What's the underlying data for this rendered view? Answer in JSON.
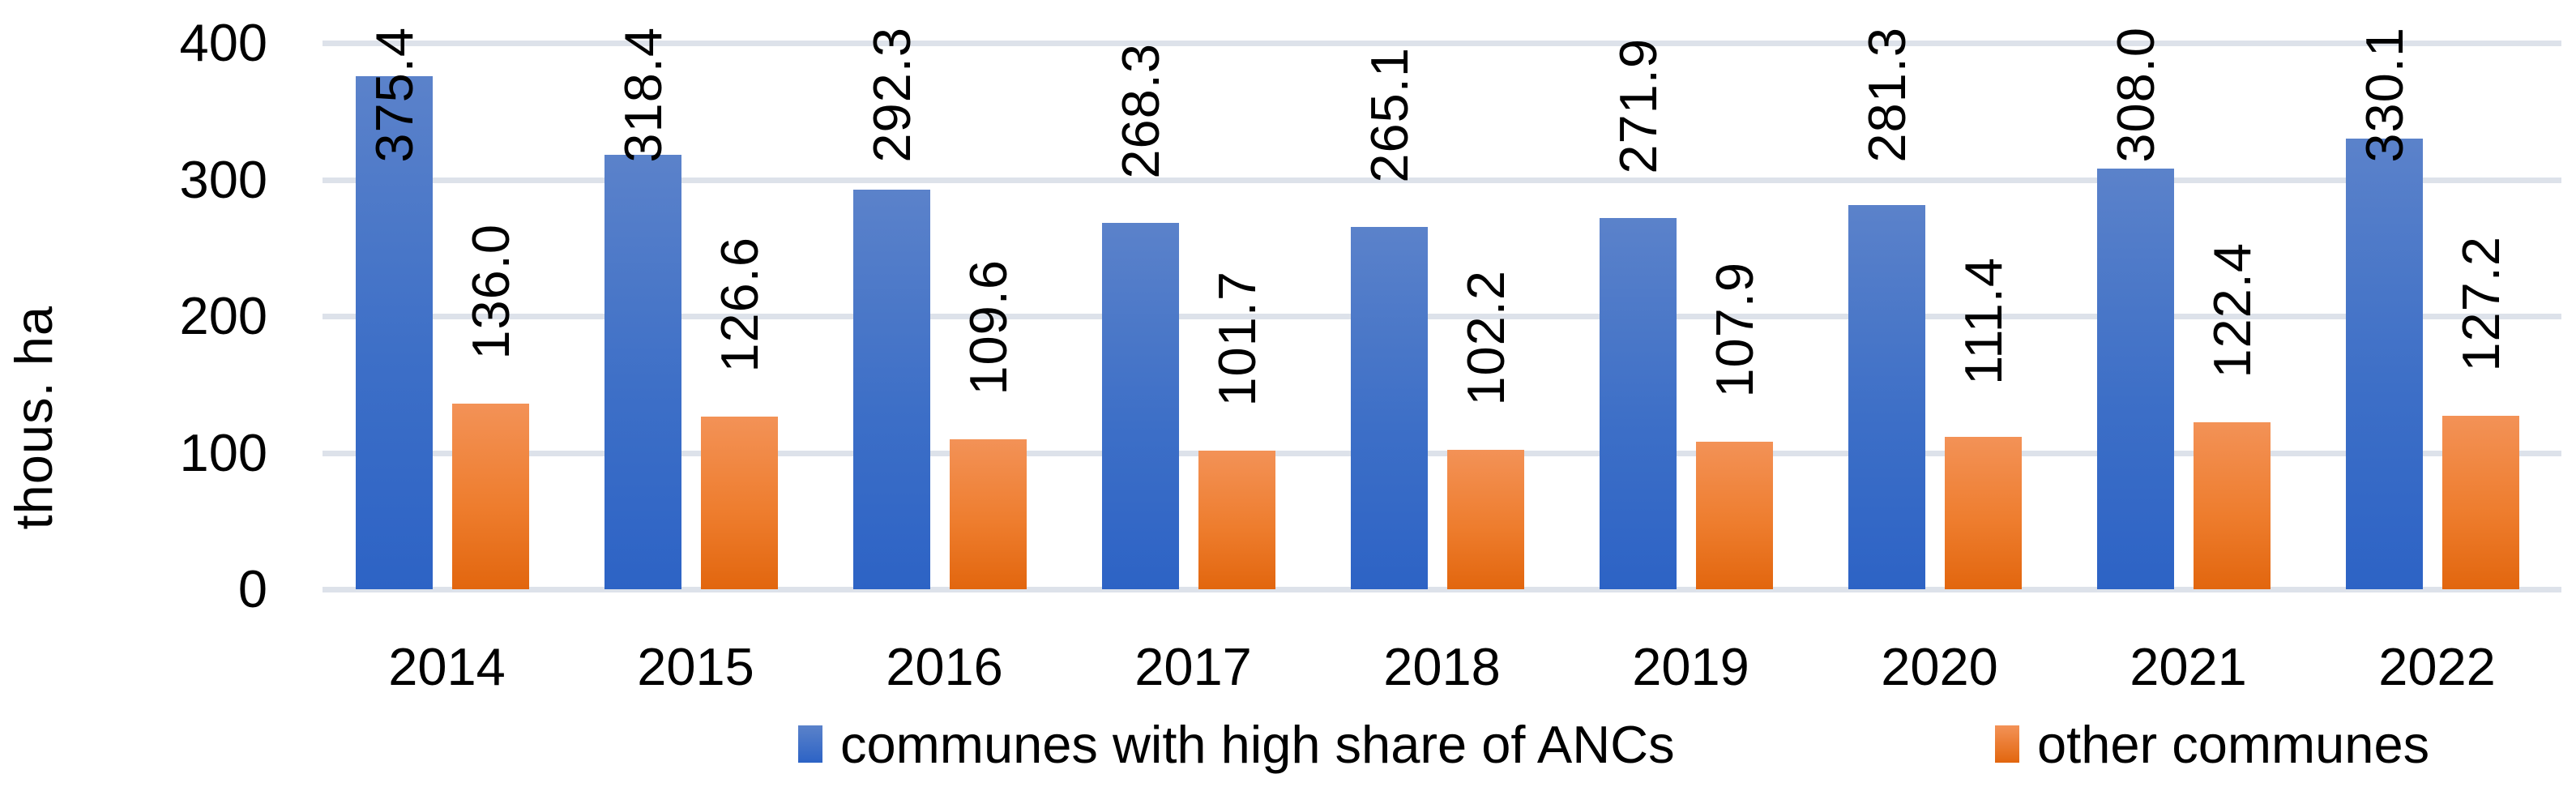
{
  "chart_data": {
    "type": "bar",
    "title": "",
    "ylabel": "thous. ha",
    "xlabel": "",
    "categories": [
      "2014",
      "2015",
      "2016",
      "2017",
      "2018",
      "2019",
      "2020",
      "2021",
      "2022"
    ],
    "series": [
      {
        "name": "communes with high share of ANCs",
        "color_top": "#5b82ca",
        "color_bottom": "#2d63c5",
        "values": [
          375.4,
          318.4,
          292.3,
          268.3,
          265.1,
          271.9,
          281.3,
          308.0,
          330.1
        ],
        "labels": [
          "375.4",
          "318.4",
          "292.3",
          "268.3",
          "265.1",
          "271.9",
          "281.3",
          "308.0",
          "330.1"
        ]
      },
      {
        "name": "other communes",
        "color_top": "#f39257",
        "color_bottom": "#e2660e",
        "values": [
          136.0,
          126.6,
          109.6,
          101.7,
          102.2,
          107.9,
          111.4,
          122.4,
          127.2
        ],
        "labels": [
          "136.0",
          "126.6",
          "109.6",
          "101.7",
          "102.2",
          "107.9",
          "111.4",
          "122.4",
          "127.2"
        ]
      }
    ],
    "ylim": [
      0,
      400
    ],
    "yticks": [
      "0",
      "100",
      "200",
      "300",
      "400"
    ],
    "grid": true,
    "gridline_color": "#dde2ea",
    "data_label_rotation_deg": 90,
    "legend_position": "bottom"
  }
}
